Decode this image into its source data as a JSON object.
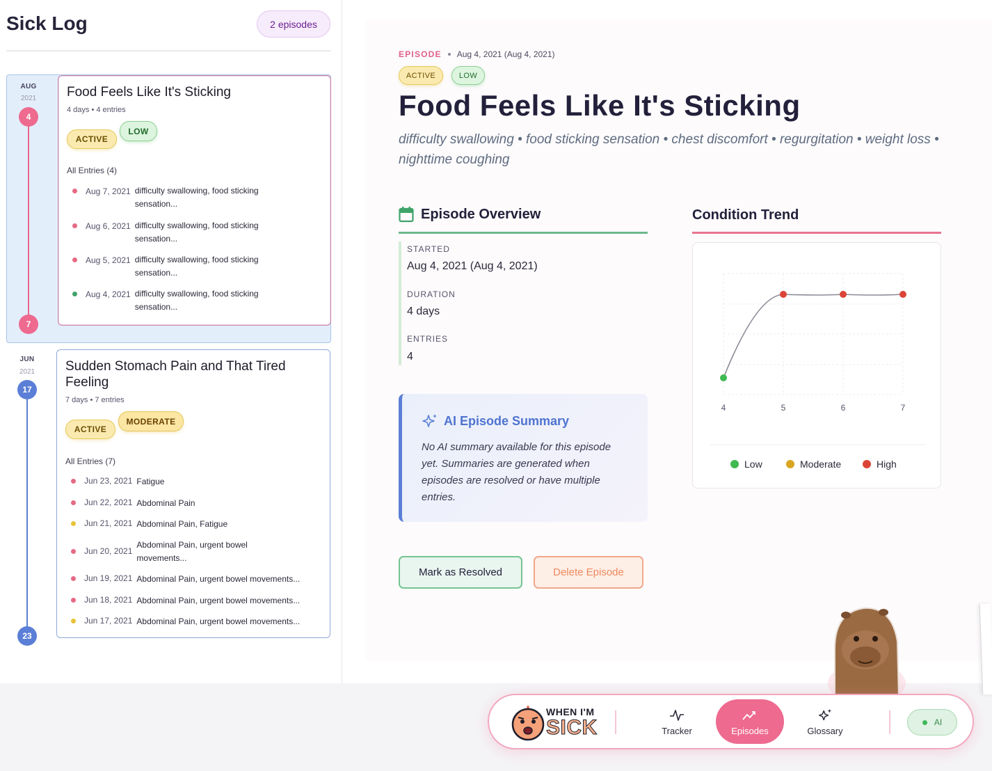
{
  "sidebar": {
    "title": "Sick Log",
    "episode_count": "2 episodes",
    "episodes": [
      {
        "month": "AUG",
        "year": "2021",
        "start_day": "4",
        "end_day": "7",
        "title": "Food Feels Like It's Sticking",
        "meta": "4 days • 4 entries",
        "status": "ACTIVE",
        "severity": "LOW",
        "entries_label": "All Entries (4)",
        "entries": [
          {
            "date": "Aug 7, 2021",
            "text": "difficulty swallowing, food sticking sensation...",
            "level": "high"
          },
          {
            "date": "Aug 6, 2021",
            "text": "difficulty swallowing, food sticking sensation...",
            "level": "high"
          },
          {
            "date": "Aug 5, 2021",
            "text": "difficulty swallowing, food sticking sensation...",
            "level": "high"
          },
          {
            "date": "Aug 4, 2021",
            "text": "difficulty swallowing, food sticking sensation...",
            "level": "low"
          }
        ]
      },
      {
        "month": "JUN",
        "year": "2021",
        "start_day": "17",
        "end_day": "23",
        "title": "Sudden Stomach Pain and That Tired Feeling",
        "meta": "7 days • 7 entries",
        "status": "ACTIVE",
        "severity": "MODERATE",
        "entries_label": "All Entries (7)",
        "entries": [
          {
            "date": "Jun 23, 2021",
            "text": "Fatigue",
            "level": "high"
          },
          {
            "date": "Jun 22, 2021",
            "text": "Abdominal Pain",
            "level": "high"
          },
          {
            "date": "Jun 21, 2021",
            "text": "Abdominal Pain, Fatigue",
            "level": "moderate"
          },
          {
            "date": "Jun 20, 2021",
            "text": "Abdominal Pain, urgent bowel movements...",
            "level": "high"
          },
          {
            "date": "Jun 19, 2021",
            "text": "Abdominal Pain, urgent bowel movements...",
            "level": "high"
          },
          {
            "date": "Jun 18, 2021",
            "text": "Abdominal Pain, urgent bowel movements...",
            "level": "high"
          },
          {
            "date": "Jun 17, 2021",
            "text": "Abdominal Pain, urgent bowel movements...",
            "level": "moderate"
          }
        ]
      }
    ]
  },
  "main": {
    "crumb_label": "EPISODE",
    "crumb_date": "Aug 4, 2021 (Aug 4, 2021)",
    "status": "ACTIVE",
    "severity": "LOW",
    "title": "Food Feels Like It's Sticking",
    "symptoms": "difficulty swallowing • food sticking sensation • chest discomfort • regurgitation • weight loss • nighttime coughing",
    "overview": {
      "heading": "Episode Overview",
      "started_label": "STARTED",
      "started_value": "Aug 4, 2021 (Aug 4, 2021)",
      "duration_label": "DURATION",
      "duration_value": "4 days",
      "entries_label": "ENTRIES",
      "entries_value": "4"
    },
    "ai_summary": {
      "heading": "AI Episode Summary",
      "text": "No AI summary available for this episode yet. Summaries are generated when episodes are resolved or have multiple entries."
    },
    "buttons": {
      "resolve": "Mark as Resolved",
      "delete": "Delete Episode"
    },
    "trend_heading": "Condition Trend"
  },
  "chart_data": {
    "type": "line",
    "x": [
      4,
      5,
      6,
      7
    ],
    "y_levels": [
      "low",
      "high",
      "high",
      "high"
    ],
    "tick_labels": [
      "4",
      "5",
      "6",
      "7"
    ],
    "legend": [
      "Low",
      "Moderate",
      "High"
    ],
    "legend_placement": "bottom",
    "colors": {
      "low": "#3fb950",
      "moderate": "#d9a621",
      "high": "#dc4437",
      "line": "#8a8a96"
    },
    "grid": true
  },
  "nav": {
    "logo_line1": "WHEN I'M",
    "logo_line2": "SICK",
    "items": [
      {
        "label": "Tracker",
        "icon": "activity-icon"
      },
      {
        "label": "Episodes",
        "icon": "trend-icon"
      },
      {
        "label": "Glossary",
        "icon": "sparkles-icon"
      }
    ],
    "ai_toggle": "AI"
  },
  "colors": {
    "accent_pink": "#ee6a8f",
    "accent_blue": "#5b7fd6",
    "accent_green": "#6bb98a"
  }
}
